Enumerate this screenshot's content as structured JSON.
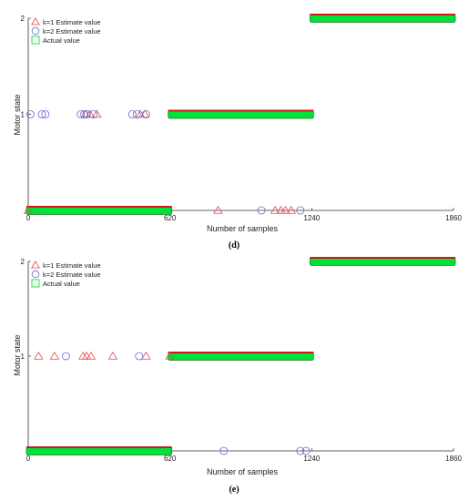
{
  "colors": {
    "k1": "#e8454a",
    "k2": "#6a6ad6",
    "actual_fill": "#00e13a",
    "actual_edge": "#2a7a2a",
    "bar_top": "#cc1a1a",
    "axis": "#333333"
  },
  "chart_data": [
    {
      "type": "scatter",
      "panel": "(d)",
      "xlabel": "Number of samples",
      "ylabel": "Motor state",
      "xlim": [
        0,
        1860
      ],
      "ylim": [
        0,
        2
      ],
      "xticks": [
        "0",
        "620",
        "1240",
        "1860"
      ],
      "yticks": [
        "",
        "1",
        "2"
      ],
      "grid": false,
      "legend_position": "top-left",
      "series": [
        {
          "name": "k=1 Estimate value",
          "marker": "triangle",
          "points": [
            [
              0,
              0
            ],
            [
              250,
              1
            ],
            [
              270,
              1
            ],
            [
              300,
              1
            ],
            [
              490,
              1
            ],
            [
              510,
              1
            ],
            [
              830,
              0
            ],
            [
              1080,
              0
            ],
            [
              1105,
              0
            ],
            [
              1125,
              0
            ],
            [
              1150,
              0
            ]
          ]
        },
        {
          "name": "k=2 Estimate value",
          "marker": "circle",
          "points": [
            [
              10,
              1
            ],
            [
              60,
              1
            ],
            [
              75,
              1
            ],
            [
              230,
              1
            ],
            [
              245,
              1
            ],
            [
              255,
              1
            ],
            [
              285,
              1
            ],
            [
              455,
              1
            ],
            [
              475,
              1
            ],
            [
              515,
              1
            ],
            [
              1020,
              0
            ],
            [
              1190,
              0
            ]
          ]
        },
        {
          "name": "Actual value",
          "marker": "square",
          "segments": [
            [
              0,
              620,
              0
            ],
            [
              620,
              1240,
              1
            ],
            [
              1240,
              1860,
              2
            ]
          ]
        }
      ]
    },
    {
      "type": "scatter",
      "panel": "(e)",
      "xlabel": "Number of samples",
      "ylabel": "Motor state",
      "xlim": [
        0,
        1860
      ],
      "ylim": [
        0,
        2
      ],
      "xticks": [
        "0",
        "620",
        "1240",
        "1860"
      ],
      "yticks": [
        "",
        "1",
        "2"
      ],
      "grid": false,
      "legend_position": "top-left",
      "series": [
        {
          "name": "k=1 Estimate value",
          "marker": "triangle",
          "points": [
            [
              45,
              1
            ],
            [
              115,
              1
            ],
            [
              240,
              1
            ],
            [
              255,
              1
            ],
            [
              275,
              1
            ],
            [
              370,
              1
            ],
            [
              515,
              1
            ],
            [
              620,
              1
            ]
          ]
        },
        {
          "name": "k=2 Estimate value",
          "marker": "circle",
          "points": [
            [
              165,
              1
            ],
            [
              485,
              1
            ],
            [
              855,
              0
            ],
            [
              1190,
              0
            ],
            [
              1215,
              0
            ]
          ]
        },
        {
          "name": "Actual value",
          "marker": "square",
          "segments": [
            [
              0,
              620,
              0
            ],
            [
              620,
              1240,
              1
            ],
            [
              1240,
              1860,
              2
            ]
          ]
        }
      ]
    }
  ]
}
